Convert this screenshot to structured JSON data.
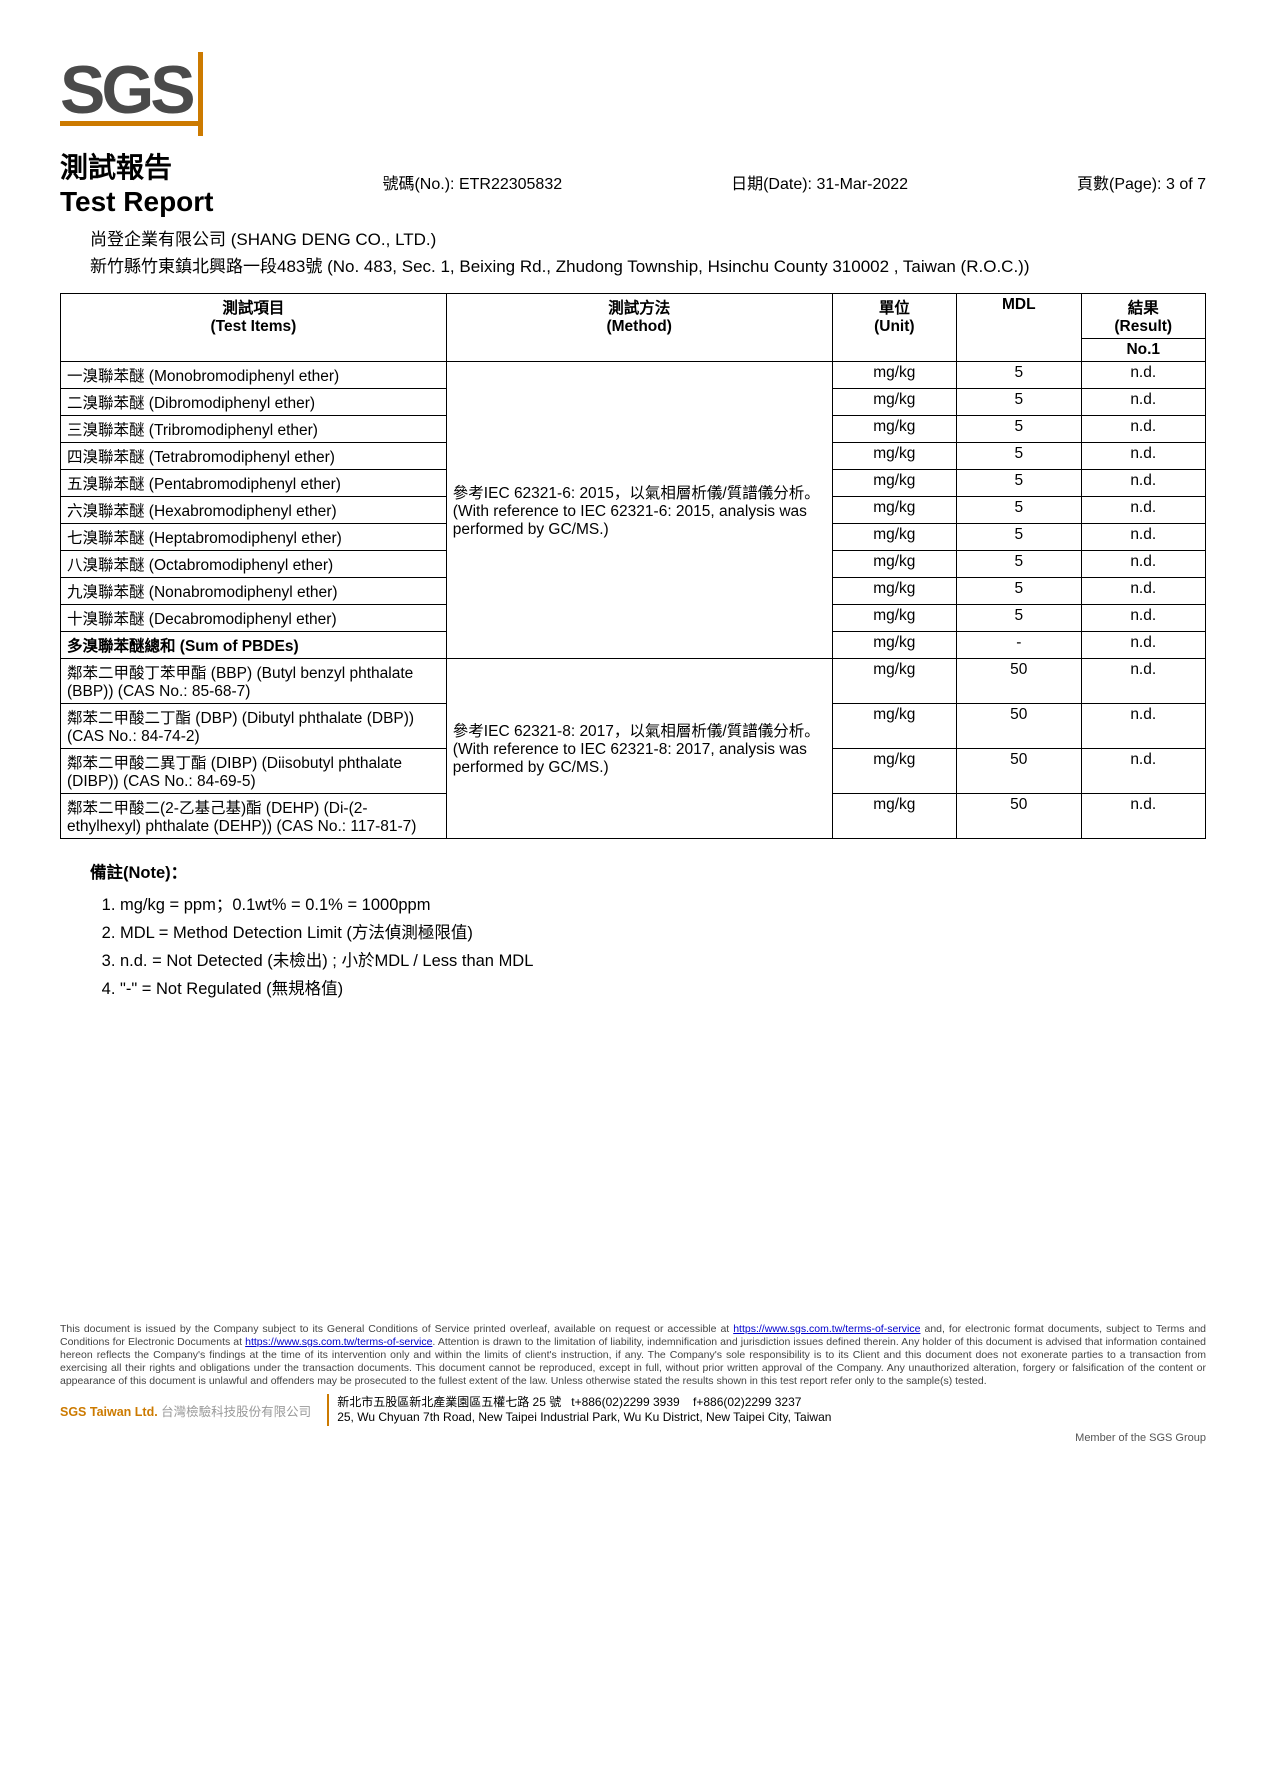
{
  "logo": {
    "text": "SGS",
    "underline_color": "#cc7a00",
    "text_color": "#4a4a4a"
  },
  "title": {
    "zh": "測試報告",
    "en": "Test Report"
  },
  "meta": {
    "no_label": "號碼(No.):",
    "no_value": "ETR22305832",
    "date_label": "日期(Date):",
    "date_value": "31-Mar-2022",
    "page_label": "頁數(Page):",
    "page_value": "3 of 7"
  },
  "company": {
    "name": "尚登企業有限公司 (SHANG DENG CO., LTD.)",
    "address": "新竹縣竹東鎮北興路一段483號 (No. 483, Sec. 1, Beixing Rd., Zhudong Township, Hsinchu County 310002 , Taiwan (R.O.C.))"
  },
  "table": {
    "headers": {
      "items": "測試項目\n(Test Items)",
      "method": "測試方法\n(Method)",
      "unit": "單位\n(Unit)",
      "mdl": "MDL",
      "result": "結果\n(Result)",
      "no1": "No.1"
    },
    "section1_method": "參考IEC 62321-6: 2015，以氣相層析儀/質譜儀分析。(With reference to IEC 62321-6: 2015, analysis was performed by GC/MS.)",
    "section1_rows": [
      {
        "item": "一溴聯苯醚 (Monobromodiphenyl ether)",
        "unit": "mg/kg",
        "mdl": "5",
        "result": "n.d."
      },
      {
        "item": "二溴聯苯醚 (Dibromodiphenyl ether)",
        "unit": "mg/kg",
        "mdl": "5",
        "result": "n.d."
      },
      {
        "item": "三溴聯苯醚 (Tribromodiphenyl ether)",
        "unit": "mg/kg",
        "mdl": "5",
        "result": "n.d."
      },
      {
        "item": "四溴聯苯醚 (Tetrabromodiphenyl ether)",
        "unit": "mg/kg",
        "mdl": "5",
        "result": "n.d."
      },
      {
        "item": "五溴聯苯醚 (Pentabromodiphenyl ether)",
        "unit": "mg/kg",
        "mdl": "5",
        "result": "n.d."
      },
      {
        "item": "六溴聯苯醚 (Hexabromodiphenyl ether)",
        "unit": "mg/kg",
        "mdl": "5",
        "result": "n.d."
      },
      {
        "item": "七溴聯苯醚 (Heptabromodiphenyl ether)",
        "unit": "mg/kg",
        "mdl": "5",
        "result": "n.d."
      },
      {
        "item": "八溴聯苯醚 (Octabromodiphenyl ether)",
        "unit": "mg/kg",
        "mdl": "5",
        "result": "n.d."
      },
      {
        "item": "九溴聯苯醚 (Nonabromodiphenyl ether)",
        "unit": "mg/kg",
        "mdl": "5",
        "result": "n.d."
      },
      {
        "item": "十溴聯苯醚 (Decabromodiphenyl ether)",
        "unit": "mg/kg",
        "mdl": "5",
        "result": "n.d."
      }
    ],
    "sum_row": {
      "item": "多溴聯苯醚總和 (Sum of PBDEs)",
      "unit": "mg/kg",
      "mdl": "-",
      "result": "n.d."
    },
    "section2_method": "參考IEC 62321-8: 2017，以氣相層析儀/質譜儀分析。(With reference to IEC 62321-8: 2017, analysis was performed by GC/MS.)",
    "section2_rows": [
      {
        "item": "鄰苯二甲酸丁苯甲酯 (BBP) (Butyl benzyl phthalate (BBP)) (CAS No.: 85-68-7)",
        "unit": "mg/kg",
        "mdl": "50",
        "result": "n.d."
      },
      {
        "item": "鄰苯二甲酸二丁酯 (DBP) (Dibutyl phthalate (DBP)) (CAS No.: 84-74-2)",
        "unit": "mg/kg",
        "mdl": "50",
        "result": "n.d."
      },
      {
        "item": "鄰苯二甲酸二異丁酯 (DIBP) (Diisobutyl phthalate (DIBP)) (CAS No.: 84-69-5)",
        "unit": "mg/kg",
        "mdl": "50",
        "result": "n.d."
      },
      {
        "item": "鄰苯二甲酸二(2-乙基己基)酯 (DEHP) (Di-(2-ethylhexyl) phthalate (DEHP)) (CAS No.: 117-81-7)",
        "unit": "mg/kg",
        "mdl": "50",
        "result": "n.d."
      }
    ],
    "col_widths": [
      "31%",
      "31%",
      "10%",
      "10%",
      "10%"
    ]
  },
  "notes": {
    "title": "備註(Note)：",
    "items": [
      "mg/kg = ppm；0.1wt% = 0.1% = 1000ppm",
      "MDL = Method Detection Limit (方法偵測極限值)",
      "n.d. = Not Detected (未檢出) ; 小於MDL / Less than MDL",
      "\"-\" = Not Regulated (無規格值)"
    ]
  },
  "footer": {
    "disclaimer_1": "This document is issued by the Company subject to its General Conditions of Service printed overleaf, available on request or accessible at ",
    "link1": "https://www.sgs.com.tw/terms-of-service",
    "disclaimer_2": " and, for electronic format documents, subject to Terms and Conditions for Electronic Documents at ",
    "link2": "https://www.sgs.com.tw/terms-of-service",
    "disclaimer_3": ". Attention is drawn to the limitation of liability, indemnification and jurisdiction issues defined therein. Any holder of this document is advised that information contained hereon reflects the Company's findings at the time of its intervention only and within the limits of client's instruction, if any. The Company's sole responsibility is to its Client and this document does not exonerate parties to a transaction from exercising all their rights and obligations under the transaction documents. This document cannot be reproduced, except in full, without prior written approval of the Company. Any unauthorized alteration, forgery or falsification of the content or appearance of this document is unlawful and offenders may be prosecuted to the fullest extent of the law. Unless otherwise stated the results shown in this test report refer only to the sample(s) tested.",
    "company_line": "SGS Taiwan Ltd.",
    "company_sub": " 台灣檢驗科技股份有限公司",
    "addr_zh": "新北市五股區新北產業園區五權七路 25 號",
    "tel": "t+886(02)2299 3939",
    "fax": "f+886(02)2299 3237",
    "addr_en": "25, Wu Chyuan 7th Road, New Taipei Industrial Park, Wu Ku District, New Taipei City, Taiwan",
    "member": "Member of the SGS Group"
  }
}
